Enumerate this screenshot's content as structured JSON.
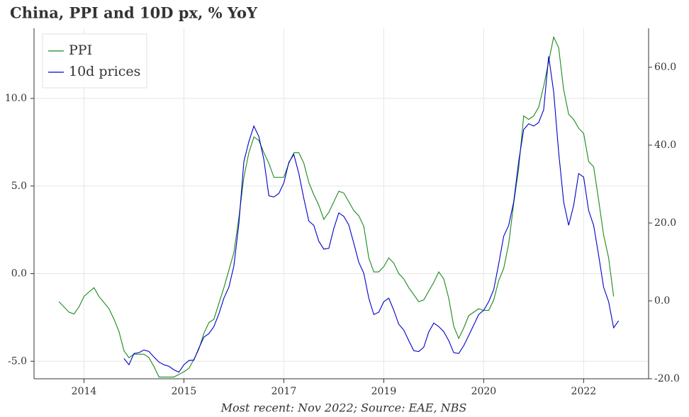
{
  "chart_data": {
    "type": "line",
    "title": "China, PPI and 10D px, % YoY",
    "footnote": "Most recent: Nov 2022; Source: EAE, NBS",
    "xlim": [
      "2013-03",
      "2023-06"
    ],
    "xticks": [
      {
        "value": "2014-01",
        "label": "2014"
      },
      {
        "value": "2015-09",
        "label": "2015"
      },
      {
        "value": "2017-05",
        "label": "2017"
      },
      {
        "value": "2019-01",
        "label": "2019"
      },
      {
        "value": "2020-09",
        "label": "2020"
      },
      {
        "value": "2022-05",
        "label": "2022"
      }
    ],
    "ylim": [
      -6,
      14
    ],
    "yticks": [
      {
        "value": -5,
        "label": "-5.0"
      },
      {
        "value": 0,
        "label": "0.0"
      },
      {
        "value": 5,
        "label": "5.0"
      },
      {
        "value": 10,
        "label": "10.0"
      }
    ],
    "y2lim": [
      -20,
      70
    ],
    "y2ticks": [
      {
        "value": -20,
        "label": "-20.0"
      },
      {
        "value": 0,
        "label": "0.0"
      },
      {
        "value": 20,
        "label": "20.0"
      },
      {
        "value": 40,
        "label": "40.0"
      },
      {
        "value": 60,
        "label": "60.0"
      }
    ],
    "grid": true,
    "legend": "upper left",
    "series": [
      {
        "name": "PPI",
        "color": "#1a8a1a",
        "x": [
          "2013-08",
          "2013-10",
          "2013-11",
          "2013-12",
          "2014-01",
          "2014-03",
          "2014-04",
          "2014-06",
          "2014-07",
          "2014-08",
          "2014-09",
          "2014-10",
          "2014-11",
          "2015-01",
          "2015-02",
          "2015-03",
          "2015-04",
          "2015-06",
          "2015-07",
          "2015-09",
          "2015-10",
          "2015-11",
          "2015-12",
          "2016-01",
          "2016-02",
          "2016-03",
          "2016-04",
          "2016-05",
          "2016-06",
          "2016-07",
          "2016-08",
          "2016-09",
          "2016-10",
          "2016-11",
          "2016-12",
          "2017-01",
          "2017-02",
          "2017-03",
          "2017-05",
          "2017-06",
          "2017-07",
          "2017-08",
          "2017-09",
          "2017-10",
          "2017-11",
          "2017-12",
          "2018-01",
          "2018-02",
          "2018-03",
          "2018-04",
          "2018-05",
          "2018-06",
          "2018-07",
          "2018-08",
          "2018-09",
          "2018-10",
          "2018-11",
          "2018-12",
          "2019-01",
          "2019-02",
          "2019-03",
          "2019-04",
          "2019-05",
          "2019-06",
          "2019-07",
          "2019-08",
          "2019-09",
          "2019-10",
          "2019-11",
          "2019-12",
          "2020-01",
          "2020-02",
          "2020-03",
          "2020-04",
          "2020-05",
          "2020-06",
          "2020-08",
          "2020-09",
          "2020-10",
          "2020-11",
          "2020-12",
          "2021-01",
          "2021-02",
          "2021-03",
          "2021-04",
          "2021-05",
          "2021-06",
          "2021-07",
          "2021-08",
          "2021-09",
          "2021-11",
          "2021-12",
          "2022-01",
          "2022-02",
          "2022-03",
          "2022-04",
          "2022-05",
          "2022-06",
          "2022-07",
          "2022-08",
          "2022-09",
          "2022-10",
          "2022-11"
        ],
        "values": [
          -1.6,
          -2.2,
          -2.3,
          -1.9,
          -1.3,
          -0.8,
          -1.3,
          -2.0,
          -2.6,
          -3.3,
          -4.4,
          -4.8,
          -4.6,
          -4.6,
          -4.8,
          -5.3,
          -5.9,
          -5.9,
          -5.9,
          -5.6,
          -5.4,
          -4.9,
          -4.3,
          -3.4,
          -2.8,
          -2.6,
          -1.7,
          -0.8,
          0.2,
          1.2,
          3.2,
          5.5,
          6.9,
          7.8,
          7.6,
          6.9,
          6.3,
          5.5,
          5.5,
          6.3,
          6.9,
          6.9,
          6.3,
          5.2,
          4.5,
          3.9,
          3.1,
          3.5,
          4.1,
          4.7,
          4.6,
          4.1,
          3.6,
          3.3,
          2.7,
          0.9,
          0.1,
          0.1,
          0.4,
          0.9,
          0.6,
          0.0,
          -0.3,
          -0.8,
          -1.2,
          -1.6,
          -1.5,
          -1.0,
          -0.5,
          0.1,
          -0.3,
          -1.4,
          -3.0,
          -3.7,
          -3.1,
          -2.4,
          -2.0,
          -2.1,
          -2.1,
          -1.5,
          -0.4,
          0.3,
          1.7,
          4.0,
          6.0,
          9.0,
          8.8,
          9.0,
          9.5,
          10.7,
          13.5,
          12.9,
          10.5,
          9.1,
          8.8,
          8.3,
          8.0,
          6.4,
          6.1,
          4.2,
          2.2,
          0.9,
          -1.3
        ]
      },
      {
        "name": "10d prices",
        "color": "#0000cc",
        "axis": "y2",
        "x": [
          "2014-09",
          "2014-10",
          "2014-11",
          "2014-12",
          "2015-01",
          "2015-02",
          "2015-03",
          "2015-04",
          "2015-05",
          "2015-06",
          "2015-07",
          "2015-08",
          "2015-09",
          "2015-10",
          "2015-11",
          "2015-12",
          "2016-01",
          "2016-02",
          "2016-03",
          "2016-04",
          "2016-05",
          "2016-06",
          "2016-07",
          "2016-08",
          "2016-09",
          "2016-10",
          "2016-11",
          "2016-12",
          "2017-01",
          "2017-02",
          "2017-03",
          "2017-04",
          "2017-05",
          "2017-06",
          "2017-07",
          "2017-08",
          "2017-09",
          "2017-10",
          "2017-11",
          "2017-12",
          "2018-01",
          "2018-02",
          "2018-03",
          "2018-04",
          "2018-05",
          "2018-06",
          "2018-07",
          "2018-08",
          "2018-09",
          "2018-10",
          "2018-11",
          "2018-12",
          "2019-01",
          "2019-02",
          "2019-03",
          "2019-04",
          "2019-05",
          "2019-06",
          "2019-07",
          "2019-08",
          "2019-09",
          "2019-10",
          "2019-11",
          "2019-12",
          "2020-01",
          "2020-02",
          "2020-03",
          "2020-04",
          "2020-05",
          "2020-06",
          "2020-07",
          "2020-08",
          "2020-09",
          "2020-10",
          "2020-11",
          "2020-12",
          "2021-01",
          "2021-02",
          "2021-03",
          "2021-04",
          "2021-05",
          "2021-06",
          "2021-07",
          "2021-08",
          "2021-09",
          "2021-10",
          "2021-11",
          "2021-12",
          "2022-01",
          "2022-02",
          "2022-03",
          "2022-04",
          "2022-05",
          "2022-06",
          "2022-07",
          "2022-08",
          "2022-09",
          "2022-10",
          "2022-11",
          "2022-12"
        ],
        "values": [
          -14.8,
          -16.4,
          -13.5,
          -13.3,
          -12.6,
          -13.0,
          -14.4,
          -15.7,
          -16.4,
          -16.8,
          -17.7,
          -18.3,
          -16.4,
          -15.3,
          -15.2,
          -12.1,
          -9.3,
          -8.4,
          -6.6,
          -3.3,
          0.7,
          3.5,
          9.0,
          19.9,
          35.8,
          40.9,
          44.9,
          42.2,
          36.3,
          27.0,
          26.7,
          27.6,
          30.3,
          35.6,
          37.6,
          32.7,
          26.3,
          20.5,
          19.4,
          15.3,
          13.3,
          13.5,
          18.6,
          22.6,
          21.7,
          19.5,
          14.8,
          9.9,
          7.1,
          0.7,
          -3.5,
          -2.9,
          -0.2,
          0.7,
          -2.4,
          -6.0,
          -7.5,
          -10.2,
          -12.8,
          -13.0,
          -11.9,
          -8.0,
          -5.7,
          -6.6,
          -7.9,
          -10.2,
          -13.3,
          -13.5,
          -11.5,
          -8.9,
          -6.2,
          -3.5,
          -2.4,
          -0.2,
          2.9,
          9.5,
          16.6,
          19.4,
          25.4,
          35.8,
          44.0,
          45.5,
          44.9,
          45.8,
          49.1,
          62.8,
          53.7,
          38.2,
          25.4,
          19.4,
          24.5,
          32.7,
          31.8,
          23.2,
          19.4,
          11.7,
          3.5,
          -0.2,
          -6.9,
          -5.1
        ]
      }
    ]
  }
}
